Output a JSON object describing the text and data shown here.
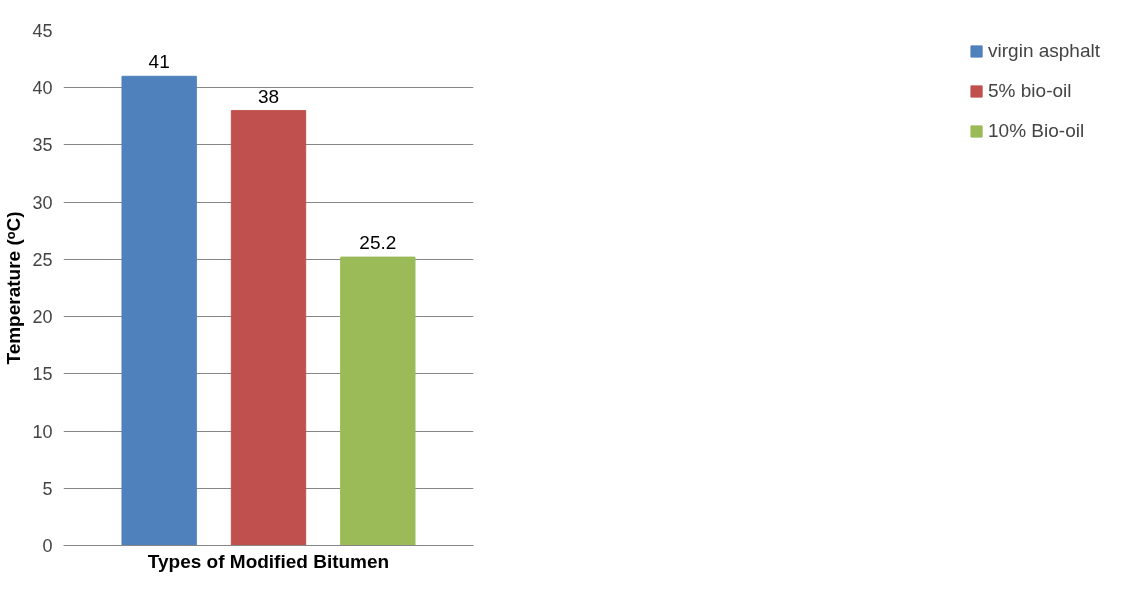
{
  "chart_data": {
    "type": "bar",
    "xlabel": "Types of Modified Bitumen",
    "ylabel": "Temperature (ᵒC)",
    "categories": [
      null
    ],
    "series": [
      {
        "name": "virgin asphalt",
        "color": "#4f81bd",
        "values": [
          41
        ]
      },
      {
        "name": "5% bio-oil",
        "color": "#c0504d",
        "values": [
          38
        ]
      },
      {
        "name": "10% Bio-oil",
        "color": "#9bbb59",
        "values": [
          25.2
        ]
      }
    ],
    "ylim": [
      0,
      45
    ],
    "yticks": [
      0,
      5,
      10,
      15,
      20,
      25,
      30,
      35,
      40,
      45
    ],
    "grid": "y",
    "legend": "right",
    "data_labels": true
  }
}
